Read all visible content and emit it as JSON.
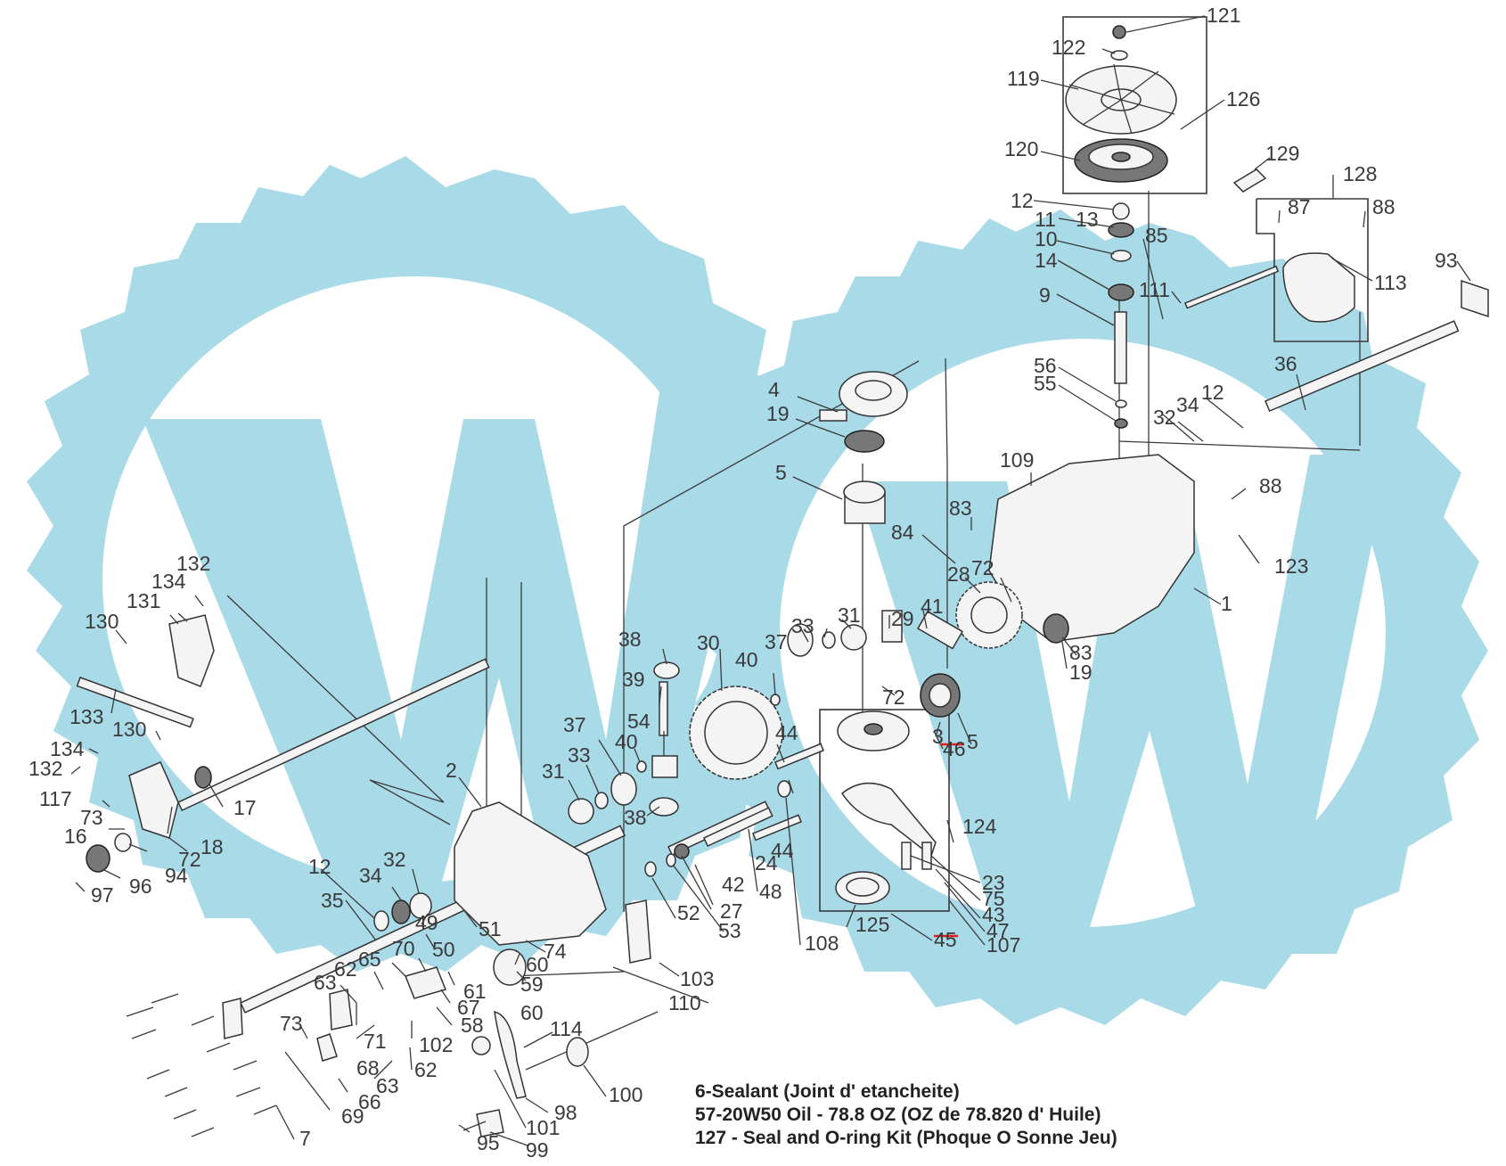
{
  "diagram": {
    "watermark_color": "#a9dae8",
    "callouts": {
      "c121": "121",
      "c122": "122",
      "c119": "119",
      "c126": "126",
      "c120": "120",
      "c129": "129",
      "c128": "128",
      "c87": "87",
      "c88a": "88",
      "c12a": "12",
      "c11": "11",
      "c13": "13",
      "c85": "85",
      "c10": "10",
      "c14": "14",
      "c111": "111",
      "c113": "113",
      "c93": "93",
      "c9": "9",
      "c56": "56",
      "c55": "55",
      "c36": "36",
      "c12b": "12",
      "c34a": "34",
      "c32a": "32",
      "c4": "4",
      "c19a": "19",
      "c109": "109",
      "c88b": "88",
      "c5a": "5",
      "c83a": "83",
      "c123": "123",
      "c84": "84",
      "c72a": "72",
      "c28": "28",
      "c1": "1",
      "c31a": "31",
      "c29": "29",
      "c41": "41",
      "c38a": "38",
      "c30": "30",
      "c37a": "37",
      "c33a": "33",
      "c83b": "83",
      "c19b": "19",
      "c72b": "72",
      "c39": "39",
      "c40a": "40",
      "c132a": "132",
      "c134a": "134",
      "c131": "131",
      "c130a": "130",
      "c54": "54",
      "c44a": "44",
      "c3": "3",
      "c46": "46",
      "c5b": "5",
      "c37b": "37",
      "c33b": "33",
      "c40b": "40",
      "c133": "133",
      "c130b": "130",
      "c2": "2",
      "c31b": "31",
      "c38b": "38",
      "c134b": "134",
      "c132b": "132",
      "c17": "17",
      "c24": "24",
      "c44b": "44",
      "c124": "124",
      "c117": "117",
      "c73a": "73",
      "c16": "16",
      "c18": "18",
      "c72c": "72",
      "c94": "94",
      "c96": "96",
      "c97": "97",
      "c42": "42",
      "c48": "48",
      "c27": "27",
      "c53": "53",
      "c23": "23",
      "c75": "75",
      "c43": "43",
      "c47": "47",
      "c107": "107",
      "c45": "45",
      "c125": "125",
      "c108": "108",
      "c52": "52",
      "c12c": "12",
      "c35": "35",
      "c34b": "34",
      "c32b": "32",
      "c49": "49",
      "c51": "51",
      "c50": "50",
      "c74": "74",
      "c60a": "60",
      "c59": "59",
      "c103": "103",
      "c62a": "62",
      "c65": "65",
      "c70": "70",
      "c61": "61",
      "c63a": "63",
      "c67": "67",
      "c58": "58",
      "c60b": "60",
      "c110": "110",
      "c73b": "73",
      "c71": "71",
      "c102": "102",
      "c114": "114",
      "c68": "68",
      "c63b": "63",
      "c62b": "62",
      "c66": "66",
      "c69": "69",
      "c100": "100",
      "c98": "98",
      "c101": "101",
      "c95": "95",
      "c99": "99",
      "c7": "7"
    },
    "notes": [
      "6-Sealant (Joint d' etancheite)",
      "57-20W50 Oil - 78.8 OZ (OZ de 78.820 d' Huile)",
      "127 - Seal and O-ring Kit (Phoque O Sonne Jeu)"
    ]
  }
}
